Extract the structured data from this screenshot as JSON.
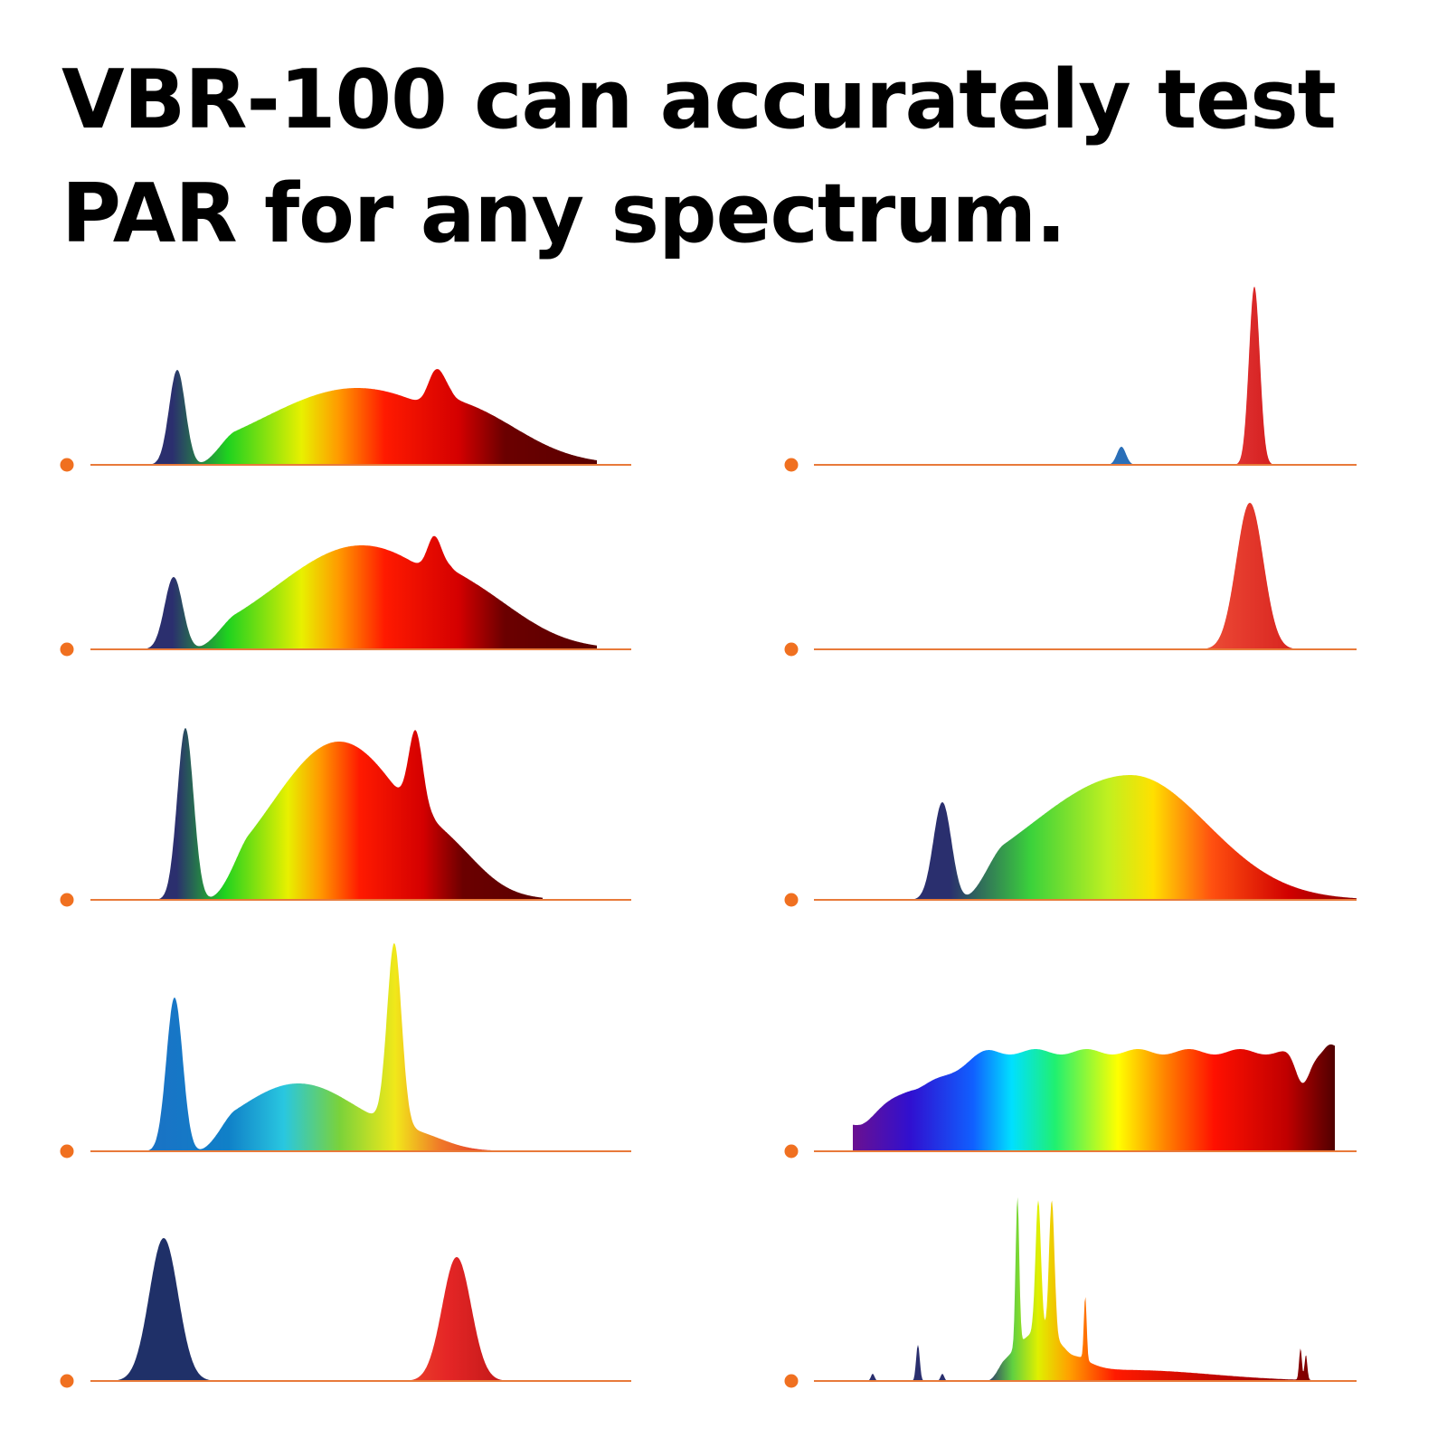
{
  "header": {
    "title": "VBR-100 can accurately test PAR for any spectrum."
  }
}
